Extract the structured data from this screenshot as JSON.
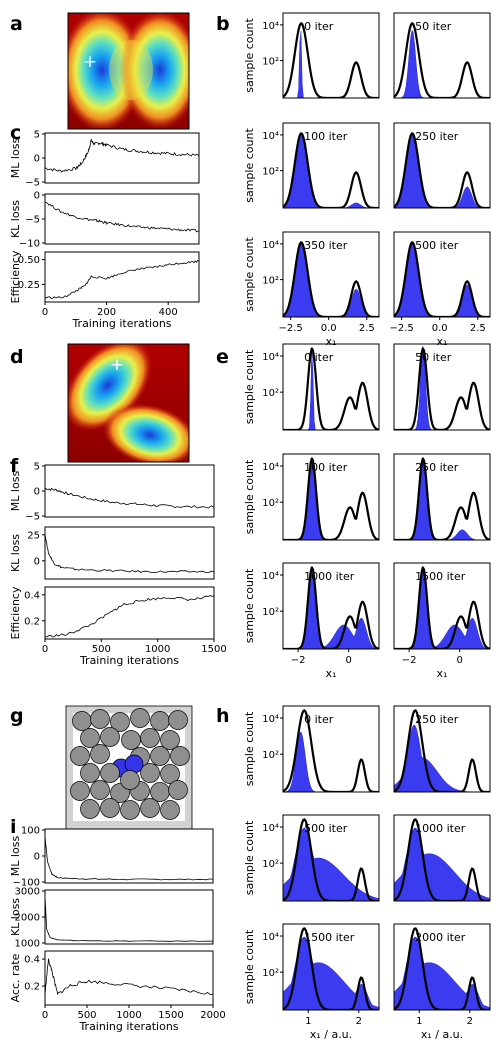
{
  "chart_data": [
    {
      "id": "a",
      "type": "heatmap",
      "panel_label": "a",
      "description_visible": "energy landscape with two minima",
      "marker": "+"
    },
    {
      "id": "b",
      "type": "bar",
      "panel_label": "b",
      "ylabel": "sample count",
      "xlabel": "x₁",
      "yscale": "log",
      "yticks": [
        "10⁴",
        "10²"
      ],
      "xticks": [
        "−2.5",
        "0.0",
        "2.5"
      ],
      "xlim": [
        -3,
        3.3
      ],
      "panels": [
        {
          "label": "0 iter"
        },
        {
          "label": "50 iter"
        },
        {
          "label": "100 iter"
        },
        {
          "label": "250 iter"
        },
        {
          "label": "350 iter"
        },
        {
          "label": "500 iter"
        }
      ]
    },
    {
      "id": "c",
      "type": "line",
      "panel_label": "c",
      "xlabel": "Training iterations",
      "xticks": [
        "0",
        "200",
        "400"
      ],
      "xlim": [
        0,
        500
      ],
      "rows": [
        {
          "ylabel": "ML loss",
          "yticks": [
            "5",
            "0",
            "−5"
          ],
          "ylim": [
            -5,
            5
          ],
          "points": [
            [
              0,
              -2
            ],
            [
              50,
              -2.6
            ],
            [
              100,
              -2.1
            ],
            [
              120,
              -1
            ],
            [
              140,
              1.2
            ],
            [
              150,
              3.5
            ],
            [
              160,
              2.8
            ],
            [
              180,
              3.0
            ],
            [
              200,
              2.6
            ],
            [
              250,
              1.8
            ],
            [
              300,
              1.4
            ],
            [
              350,
              1.1
            ],
            [
              400,
              0.9
            ],
            [
              450,
              0.7
            ],
            [
              500,
              0.5
            ]
          ]
        },
        {
          "ylabel": "KL loss",
          "yticks": [
            "0",
            "−5",
            "−10"
          ],
          "ylim": [
            -10,
            0
          ],
          "points": [
            [
              0,
              -1.5
            ],
            [
              50,
              -3.5
            ],
            [
              100,
              -4.6
            ],
            [
              150,
              -5.2
            ],
            [
              175,
              -5.4
            ],
            [
              200,
              -5.8
            ],
            [
              250,
              -6.2
            ],
            [
              300,
              -6.6
            ],
            [
              350,
              -6.8
            ],
            [
              400,
              -7.0
            ],
            [
              450,
              -7.2
            ],
            [
              500,
              -7.4
            ]
          ]
        },
        {
          "ylabel": "Efficiency",
          "yticks": [
            "0.50",
            "0.25"
          ],
          "ylim": [
            0,
            0.55
          ],
          "points": [
            [
              0,
              0.05
            ],
            [
              60,
              0.05
            ],
            [
              100,
              0.12
            ],
            [
              130,
              0.18
            ],
            [
              150,
              0.28
            ],
            [
              200,
              0.26
            ],
            [
              250,
              0.32
            ],
            [
              300,
              0.36
            ],
            [
              350,
              0.38
            ],
            [
              400,
              0.41
            ],
            [
              450,
              0.43
            ],
            [
              500,
              0.45
            ]
          ]
        }
      ]
    },
    {
      "id": "d",
      "type": "heatmap",
      "panel_label": "d",
      "description_visible": "curved energy landscape",
      "marker": "+"
    },
    {
      "id": "e",
      "type": "bar",
      "panel_label": "e",
      "ylabel": "sample count",
      "xlabel": "x₁",
      "yscale": "log",
      "yticks": [
        "10⁴",
        "10²"
      ],
      "xticks": [
        "−2",
        "0"
      ],
      "xlim": [
        -2.6,
        1.2
      ],
      "panels": [
        {
          "label": "0 iter"
        },
        {
          "label": "50 iter"
        },
        {
          "label": "100 iter"
        },
        {
          "label": "250 iter"
        },
        {
          "label": "1000 iter"
        },
        {
          "label": "1500 iter"
        }
      ]
    },
    {
      "id": "f",
      "type": "line",
      "panel_label": "f",
      "xlabel": "Training iterations",
      "xticks": [
        "0",
        "500",
        "1000",
        "1500"
      ],
      "xlim": [
        0,
        1500
      ],
      "rows": [
        {
          "ylabel": "ML loss",
          "yticks": [
            "5",
            "0",
            "−5"
          ],
          "ylim": [
            -5,
            5
          ],
          "points": [
            [
              0,
              0.5
            ],
            [
              100,
              0.2
            ],
            [
              200,
              -0.5
            ],
            [
              400,
              -1.5
            ],
            [
              600,
              -2.2
            ],
            [
              800,
              -2.5
            ],
            [
              1000,
              -2.8
            ],
            [
              1200,
              -3.0
            ],
            [
              1500,
              -3.1
            ]
          ]
        },
        {
          "ylabel": "KL loss",
          "yticks": [
            "25",
            "0"
          ],
          "ylim": [
            -5,
            45
          ],
          "points": [
            [
              0,
              38
            ],
            [
              30,
              20
            ],
            [
              80,
              10
            ],
            [
              150,
              6
            ],
            [
              300,
              4
            ],
            [
              600,
              3
            ],
            [
              900,
              2
            ],
            [
              1200,
              2
            ],
            [
              1500,
              2
            ]
          ]
        },
        {
          "ylabel": "Efficiency",
          "yticks": [
            "0.4",
            "0.2"
          ],
          "ylim": [
            0,
            0.45
          ],
          "points": [
            [
              0,
              0.02
            ],
            [
              200,
              0.04
            ],
            [
              400,
              0.12
            ],
            [
              600,
              0.24
            ],
            [
              700,
              0.3
            ],
            [
              900,
              0.34
            ],
            [
              1100,
              0.36
            ],
            [
              1300,
              0.34
            ],
            [
              1500,
              0.37
            ]
          ]
        }
      ]
    },
    {
      "id": "g",
      "type": "diagram",
      "panel_label": "g",
      "description_visible": "particle configuration"
    },
    {
      "id": "h",
      "type": "bar",
      "panel_label": "h",
      "ylabel": "sample count",
      "xlabel": "x₁ / a.u.",
      "yscale": "log",
      "yticks": [
        "10⁴",
        "10²"
      ],
      "xticks": [
        "1",
        "2"
      ],
      "xlim": [
        0.5,
        2.4
      ],
      "panels": [
        {
          "label": "0 iter"
        },
        {
          "label": "250 iter"
        },
        {
          "label": "500 iter"
        },
        {
          "label": "1000 iter"
        },
        {
          "label": "1500 iter"
        },
        {
          "label": "2000 iter"
        }
      ]
    },
    {
      "id": "i",
      "type": "line",
      "panel_label": "i",
      "xlabel": "Training iterations",
      "xticks": [
        "0",
        "500",
        "1000",
        "1500",
        "2000"
      ],
      "xlim": [
        0,
        2000
      ],
      "rows": [
        {
          "ylabel": "ML loss",
          "yticks": [
            "100",
            "0",
            "−100"
          ],
          "ylim": [
            -180,
            120
          ],
          "points": [
            [
              0,
              80
            ],
            [
              30,
              -60
            ],
            [
              80,
              -130
            ],
            [
              150,
              -150
            ],
            [
              300,
              -155
            ],
            [
              600,
              -158
            ],
            [
              1000,
              -160
            ],
            [
              1500,
              -160
            ],
            [
              2000,
              -160
            ]
          ]
        },
        {
          "ylabel": "KL loss",
          "yticks": [
            "3000",
            "2000",
            "1000"
          ],
          "ylim": [
            300,
            3600
          ],
          "points": [
            [
              0,
              3200
            ],
            [
              20,
              1200
            ],
            [
              60,
              700
            ],
            [
              150,
              550
            ],
            [
              400,
              500
            ],
            [
              1000,
              480
            ],
            [
              2000,
              470
            ]
          ]
        },
        {
          "ylabel": "Acc. rate",
          "yticks": [
            "0.4",
            "0.2"
          ],
          "ylim": [
            0,
            0.5
          ],
          "points": [
            [
              0,
              0.1
            ],
            [
              40,
              0.42
            ],
            [
              80,
              0.32
            ],
            [
              150,
              0.1
            ],
            [
              300,
              0.18
            ],
            [
              500,
              0.22
            ],
            [
              800,
              0.2
            ],
            [
              1200,
              0.17
            ],
            [
              1600,
              0.14
            ],
            [
              2000,
              0.1
            ]
          ]
        }
      ]
    }
  ]
}
